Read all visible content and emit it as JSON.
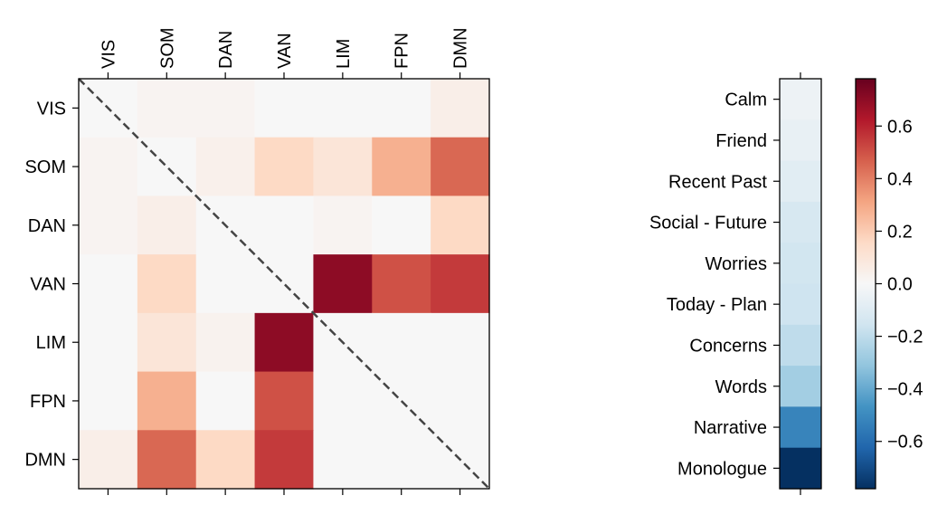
{
  "chart_data": [
    {
      "type": "heatmap",
      "title": "",
      "x_tick_labels": [
        "VIS",
        "SOM",
        "DAN",
        "VAN",
        "LIM",
        "FPN",
        "DMN"
      ],
      "y_tick_labels": [
        "VIS",
        "SOM",
        "DAN",
        "VAN",
        "LIM",
        "FPN",
        "DMN"
      ],
      "x_ticks_position": "top",
      "diagonal_dashed_line": true,
      "values": [
        [
          0.0,
          0.02,
          0.02,
          0.0,
          0.0,
          0.0,
          0.05
        ],
        [
          0.02,
          0.0,
          0.04,
          0.16,
          0.1,
          0.28,
          0.45
        ],
        [
          0.02,
          0.05,
          0.0,
          0.0,
          0.02,
          0.0,
          0.16
        ],
        [
          0.0,
          0.16,
          0.0,
          0.0,
          0.7,
          0.5,
          0.55
        ],
        [
          0.0,
          0.1,
          0.03,
          0.7,
          0.0,
          0.0,
          0.0
        ],
        [
          0.0,
          0.28,
          0.0,
          0.5,
          0.0,
          0.0,
          0.0
        ],
        [
          0.05,
          0.45,
          0.16,
          0.55,
          0.0,
          0.0,
          0.0
        ]
      ],
      "colormap": "RdBu_r",
      "vmin": -0.78,
      "vmax": 0.78
    },
    {
      "type": "heatmap",
      "title": "",
      "y_tick_labels": [
        "Calm",
        "Friend",
        "Recent Past",
        "Social - Future",
        "Worries",
        "Today - Plan",
        "Concerns",
        "Words",
        "Narrative",
        "Monologue"
      ],
      "values": [
        -0.04,
        -0.06,
        -0.09,
        -0.13,
        -0.15,
        -0.16,
        -0.2,
        -0.27,
        -0.52,
        -0.78
      ],
      "colormap": "RdBu_r",
      "vmin": -0.78,
      "vmax": 0.78
    }
  ],
  "colorbar": {
    "ticks": [
      0.6,
      0.4,
      0.2,
      0.0,
      -0.2,
      -0.4,
      -0.6
    ],
    "tick_labels": [
      "0.6",
      "0.4",
      "0.2",
      "0.0",
      "−0.2",
      "−0.4",
      "−0.6"
    ],
    "range": [
      -0.78,
      0.78
    ]
  }
}
